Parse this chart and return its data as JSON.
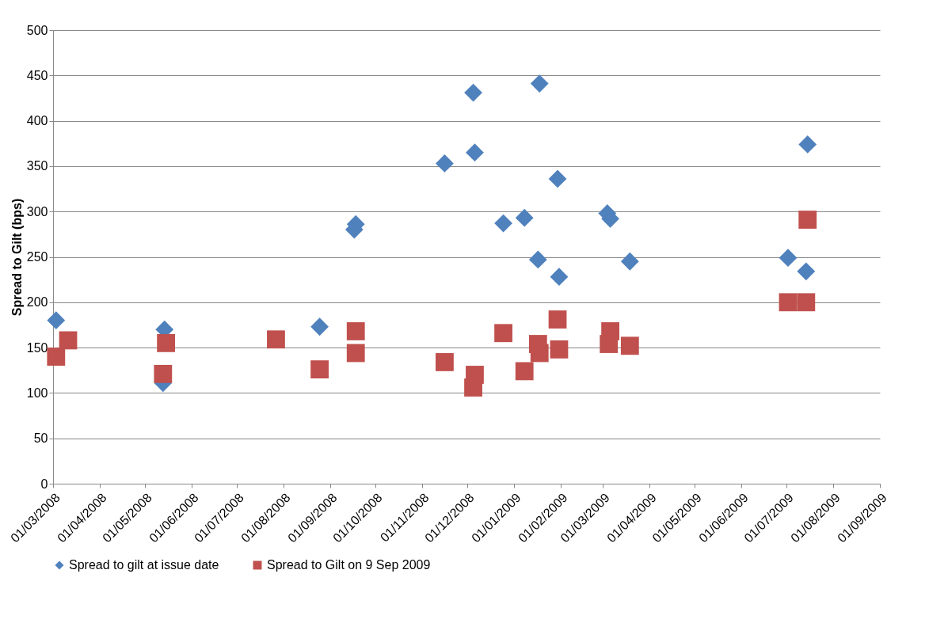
{
  "chart_data": {
    "type": "scatter",
    "ylabel": "Spread to Gilt (bps)",
    "xlim": [
      "2008-03-01",
      "2009-09-01"
    ],
    "xticks": [
      {
        "value": "2008-03-01",
        "label": "01/03/2008"
      },
      {
        "value": "2008-04-01",
        "label": "01/04/2008"
      },
      {
        "value": "2008-05-01",
        "label": "01/05/2008"
      },
      {
        "value": "2008-06-01",
        "label": "01/06/2008"
      },
      {
        "value": "2008-07-01",
        "label": "01/07/2008"
      },
      {
        "value": "2008-08-01",
        "label": "01/08/2008"
      },
      {
        "value": "2008-09-01",
        "label": "01/09/2008"
      },
      {
        "value": "2008-10-01",
        "label": "01/10/2008"
      },
      {
        "value": "2008-11-01",
        "label": "01/11/2008"
      },
      {
        "value": "2008-12-01",
        "label": "01/12/2008"
      },
      {
        "value": "2009-01-01",
        "label": "01/01/2009"
      },
      {
        "value": "2009-02-01",
        "label": "01/02/2009"
      },
      {
        "value": "2009-03-01",
        "label": "01/03/2009"
      },
      {
        "value": "2009-04-01",
        "label": "01/04/2009"
      },
      {
        "value": "2009-05-01",
        "label": "01/05/2009"
      },
      {
        "value": "2009-06-01",
        "label": "01/06/2009"
      },
      {
        "value": "2009-07-01",
        "label": "01/07/2009"
      },
      {
        "value": "2009-08-01",
        "label": "01/08/2009"
      },
      {
        "value": "2009-09-01",
        "label": "01/09/2009"
      }
    ],
    "ylim": [
      0,
      500
    ],
    "yticks": [
      0,
      50,
      100,
      150,
      200,
      250,
      300,
      350,
      400,
      450,
      500
    ],
    "grid": "y",
    "legend": "bottom",
    "series": [
      {
        "name": "Spread to gilt at issue date",
        "color": "#4f81bd",
        "marker": "diamond",
        "x": [
          "2008-03-03",
          "2008-05-14",
          "2008-05-13",
          "2008-08-25",
          "2008-09-18",
          "2008-09-17",
          "2008-11-16",
          "2008-12-05",
          "2008-12-06",
          "2008-12-25",
          "2009-01-08",
          "2009-01-18",
          "2009-01-17",
          "2009-01-30",
          "2009-01-31",
          "2009-03-04",
          "2009-03-06",
          "2009-03-19",
          "2009-07-15",
          "2009-07-02",
          "2009-07-14"
        ],
        "values": [
          180,
          170,
          111,
          173,
          286,
          280,
          353,
          431,
          365,
          287,
          293,
          441,
          247,
          336,
          228,
          298,
          292,
          245,
          374,
          249,
          234
        ]
      },
      {
        "name": "Spread to Gilt on 9 Sep 2009",
        "color": "#c0504d",
        "marker": "square",
        "x": [
          "2008-03-03",
          "2008-03-11",
          "2008-05-15",
          "2008-05-13",
          "2008-07-27",
          "2008-08-25",
          "2008-09-18",
          "2008-09-18",
          "2008-11-16",
          "2008-12-06",
          "2008-12-05",
          "2008-12-25",
          "2009-01-08",
          "2009-01-17",
          "2009-01-18",
          "2009-01-30",
          "2009-01-31",
          "2009-03-06",
          "2009-03-05",
          "2009-03-19",
          "2009-07-15",
          "2009-07-02",
          "2009-07-14"
        ],
        "values": [
          140,
          158,
          155,
          121,
          159,
          126,
          168,
          144,
          134,
          120,
          106,
          166,
          124,
          154,
          144,
          181,
          148,
          168,
          154,
          152,
          291,
          200,
          200
        ]
      }
    ]
  }
}
